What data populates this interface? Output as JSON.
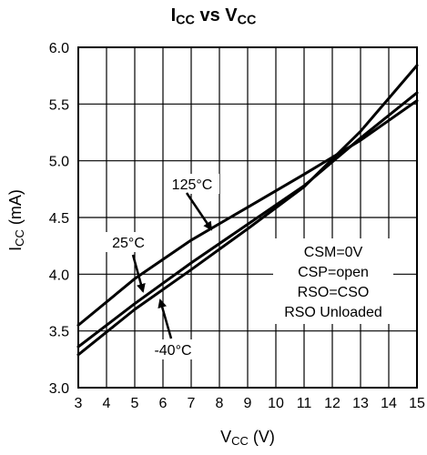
{
  "chart_data": {
    "type": "line",
    "title": {
      "main": "I",
      "sub1": "CC",
      "mid": " vs V",
      "sub2": "CC"
    },
    "xlabel": {
      "main": "V",
      "sub": "CC",
      "unit": " (V)"
    },
    "ylabel": {
      "main": "I",
      "sub": "CC",
      "unit": " (mA)"
    },
    "xlim": [
      3,
      15
    ],
    "ylim": [
      3.0,
      6.0
    ],
    "x_ticks": [
      "3",
      "4",
      "5",
      "6",
      "7",
      "8",
      "9",
      "10",
      "11",
      "12",
      "13",
      "14",
      "15"
    ],
    "y_ticks": [
      "3.0",
      "3.5",
      "4.0",
      "4.5",
      "5.0",
      "5.5",
      "6.0"
    ],
    "grid": true,
    "series": [
      {
        "name": "125°C",
        "x": [
          3,
          5,
          7,
          9,
          11,
          13,
          15
        ],
        "y": [
          3.55,
          3.96,
          4.3,
          4.59,
          4.88,
          5.18,
          5.53
        ]
      },
      {
        "name": "25°C",
        "x": [
          3,
          5,
          7,
          9,
          11,
          13,
          15
        ],
        "y": [
          3.36,
          3.74,
          4.1,
          4.44,
          4.78,
          5.2,
          5.6
        ]
      },
      {
        "name": "-40°C",
        "x": [
          3,
          5,
          7,
          9,
          11,
          13,
          15
        ],
        "y": [
          3.29,
          3.69,
          4.04,
          4.4,
          4.77,
          5.26,
          5.84
        ]
      }
    ],
    "annotations": {
      "conditions": [
        "CSM=0V",
        "CSP=open",
        "RSO=CSO",
        "RSO Unloaded"
      ]
    },
    "line_color": "#000000",
    "grid_color": "#000000"
  }
}
